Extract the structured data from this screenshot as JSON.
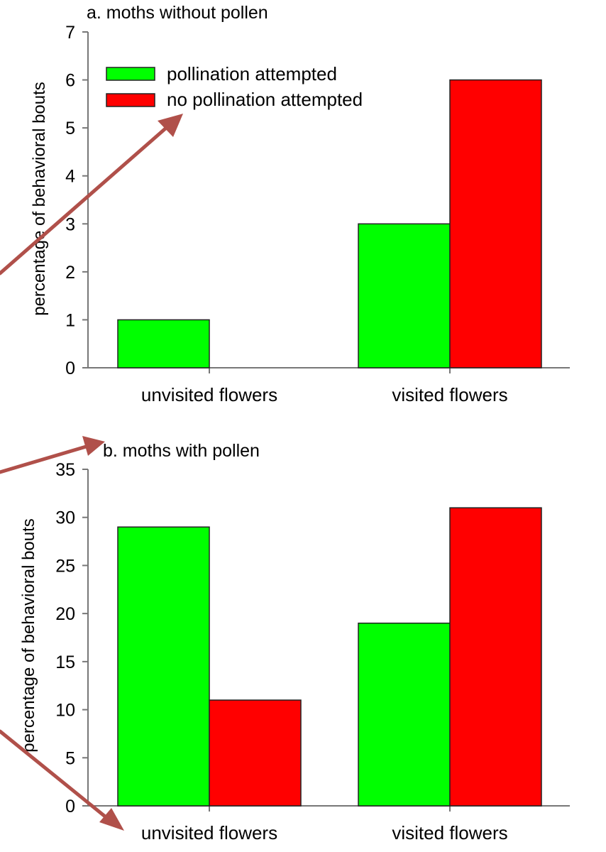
{
  "colors": {
    "pollination_attempted": "#00ff00",
    "no_pollination_attempted": "#ff0000",
    "annotation_arrow": "#b0504a"
  },
  "legend": {
    "placement": "top-left",
    "entries": [
      "pollination attempted",
      "no pollination attempted"
    ]
  },
  "chart_data": [
    {
      "type": "bar",
      "title": "a. moths without pollen",
      "ylabel": "percentage of behavioral bouts",
      "xlabel": "",
      "categories": [
        "unvisited flowers",
        "visited flowers"
      ],
      "series": [
        {
          "name": "pollination attempted",
          "values": [
            1,
            3
          ]
        },
        {
          "name": "no pollination attempted",
          "values": [
            0,
            6
          ]
        }
      ],
      "ylim": [
        0,
        7
      ],
      "yticks": [
        0,
        1,
        2,
        3,
        4,
        5,
        6,
        7
      ],
      "grid": false
    },
    {
      "type": "bar",
      "title": "b. moths with pollen",
      "ylabel": "percentage of behavioral bouts",
      "xlabel": "",
      "categories": [
        "unvisited flowers",
        "visited flowers"
      ],
      "series": [
        {
          "name": "pollination attempted",
          "values": [
            29,
            19
          ]
        },
        {
          "name": "no pollination attempted",
          "values": [
            11,
            31
          ]
        }
      ],
      "ylim": [
        0,
        35
      ],
      "yticks": [
        0,
        5,
        10,
        15,
        20,
        25,
        30,
        35
      ],
      "grid": false
    }
  ]
}
